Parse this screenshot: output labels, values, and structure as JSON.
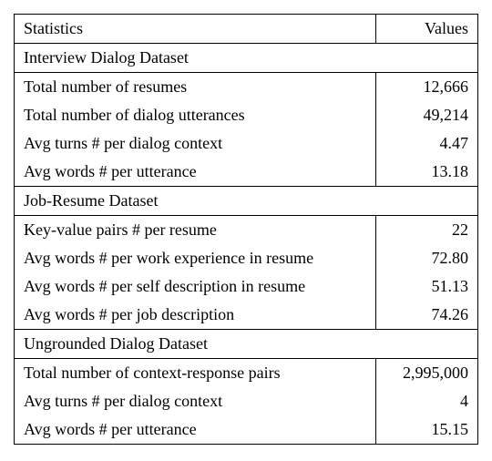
{
  "header": {
    "stat": "Statistics",
    "val": "Values"
  },
  "sections": [
    {
      "title": "Interview Dialog Dataset",
      "rows": [
        {
          "label": "Total number of resumes",
          "value": "12,666"
        },
        {
          "label": "Total number of dialog utterances",
          "value": "49,214"
        },
        {
          "label": "Avg turns # per dialog context",
          "value": "4.47"
        },
        {
          "label": "Avg words # per utterance",
          "value": "13.18"
        }
      ]
    },
    {
      "title": "Job-Resume Dataset",
      "rows": [
        {
          "label": "Key-value pairs # per resume",
          "value": "22"
        },
        {
          "label": "Avg words # per work experience in resume",
          "value": "72.80"
        },
        {
          "label": "Avg words # per self description in resume",
          "value": "51.13"
        },
        {
          "label": "Avg words # per job description",
          "value": "74.26"
        }
      ]
    },
    {
      "title": "Ungrounded Dialog Dataset",
      "rows": [
        {
          "label": "Total number of context-response pairs",
          "value": "2,995,000"
        },
        {
          "label": "Avg turns # per dialog context",
          "value": "4"
        },
        {
          "label": "Avg words # per utterance",
          "value": "15.15"
        }
      ]
    }
  ]
}
